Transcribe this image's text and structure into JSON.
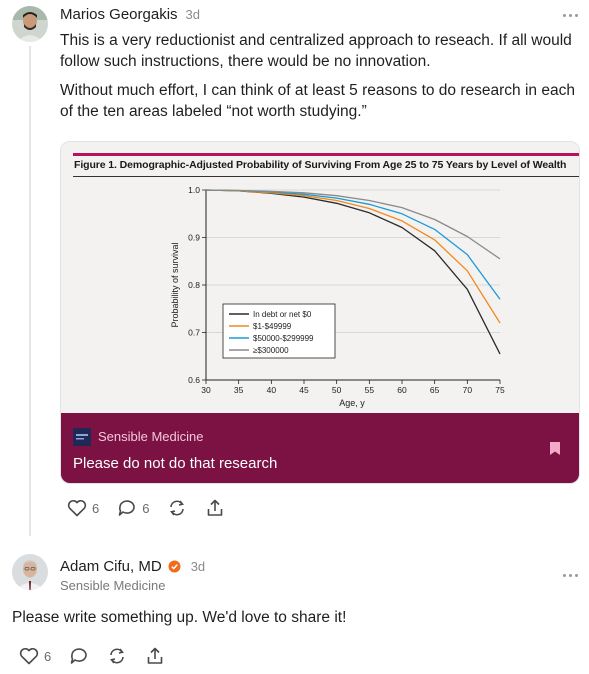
{
  "post1": {
    "author": "Marios Georgakis",
    "time": "3d",
    "paragraphs": [
      "This is a very reductionist and centralized approach to reseach. If all would follow such instructions, there would be no innovation.",
      "Without much effort, I can think of at least 5 reasons to do research in each of the ten areas labeled “not worth studying.”"
    ],
    "embed": {
      "figure_title": "Figure 1. Demographic-Adjusted Probability of Surviving From Age 25 to 75 Years by Level of Wealth",
      "publication": "Sensible Medicine",
      "title": "Please do not do that research",
      "brand_color": "#7c1244",
      "accent_color": "#b5135e"
    },
    "actions": {
      "like_count": "6",
      "comment_count": "6"
    }
  },
  "post2": {
    "author": "Adam Cifu, MD",
    "time": "3d",
    "publication": "Sensible Medicine",
    "text": "Please write something up. We'd love to share it!",
    "verified_color": "#f26b1d",
    "actions": {
      "like_count": "6"
    }
  },
  "chart_data": {
    "type": "line",
    "title": "Figure 1. Demographic-Adjusted Probability of Surviving From Age 25 to 75 Years by Level of Wealth",
    "xlabel": "Age, y",
    "ylabel": "Probability of survival",
    "xlim": [
      30,
      75
    ],
    "ylim": [
      0.6,
      1.0
    ],
    "xticks": [
      30,
      35,
      40,
      45,
      50,
      55,
      60,
      65,
      70,
      75
    ],
    "yticks": [
      "0.6",
      "0.7",
      "0.8",
      "0.9",
      "1.0"
    ],
    "grid": true,
    "legend_position": "lower-left",
    "x": [
      30,
      35,
      40,
      45,
      50,
      55,
      60,
      65,
      70,
      75
    ],
    "series": [
      {
        "name": "In debt or net $0",
        "color": "#2b2b2b",
        "values": [
          1.0,
          0.998,
          0.993,
          0.985,
          0.972,
          0.952,
          0.921,
          0.872,
          0.791,
          0.655
        ]
      },
      {
        "name": "$1-$49999",
        "color": "#f08a1c",
        "values": [
          1.0,
          0.998,
          0.994,
          0.988,
          0.978,
          0.961,
          0.935,
          0.895,
          0.83,
          0.72
        ]
      },
      {
        "name": "$50000-$299999",
        "color": "#1b9ad6",
        "values": [
          1.0,
          0.999,
          0.996,
          0.991,
          0.983,
          0.97,
          0.95,
          0.917,
          0.864,
          0.77
        ]
      },
      {
        "name": "≥$300000",
        "color": "#8a8a8a",
        "values": [
          1.0,
          0.999,
          0.997,
          0.994,
          0.988,
          0.978,
          0.963,
          0.938,
          0.902,
          0.855
        ]
      }
    ]
  }
}
